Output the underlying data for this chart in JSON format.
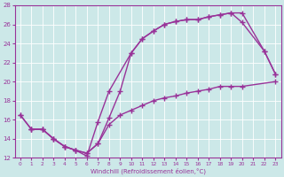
{
  "background_color": "#cce8e8",
  "line_color": "#993399",
  "marker": "+",
  "markersize": 4,
  "linewidth": 1.0,
  "xlim": [
    -0.5,
    23.5
  ],
  "ylim": [
    12,
    28
  ],
  "xticks": [
    0,
    1,
    2,
    3,
    4,
    5,
    6,
    7,
    8,
    9,
    10,
    11,
    12,
    13,
    14,
    15,
    16,
    17,
    18,
    19,
    20,
    21,
    22,
    23
  ],
  "yticks": [
    12,
    14,
    16,
    18,
    20,
    22,
    24,
    26,
    28
  ],
  "xlabel": "Windchill (Refroidissement éolien,°C)",
  "grid_color": "#ffffff",
  "series": [
    {
      "x": [
        0,
        1,
        2,
        3,
        4,
        5,
        6,
        7,
        8,
        10,
        11,
        12,
        13,
        14,
        15,
        16,
        17,
        18,
        19,
        20,
        22,
        23
      ],
      "y": [
        16.5,
        15.0,
        15.0,
        14.0,
        13.2,
        12.8,
        12.2,
        15.8,
        19.0,
        23.0,
        24.5,
        25.3,
        26.0,
        26.3,
        26.5,
        26.5,
        26.8,
        27.0,
        27.2,
        27.2,
        23.2,
        20.8
      ]
    },
    {
      "x": [
        0,
        1,
        2,
        3,
        4,
        5,
        6,
        7,
        8,
        9,
        10,
        11,
        12,
        13,
        14,
        15,
        16,
        17,
        18,
        19,
        20,
        22,
        23
      ],
      "y": [
        16.5,
        15.0,
        15.0,
        14.0,
        13.2,
        12.8,
        12.5,
        13.5,
        16.2,
        19.0,
        23.0,
        24.5,
        25.3,
        26.0,
        26.3,
        26.5,
        26.5,
        26.8,
        27.0,
        27.2,
        26.2,
        23.2,
        20.8
      ]
    },
    {
      "x": [
        1,
        2,
        3,
        4,
        5,
        6,
        7,
        8,
        9,
        10,
        11,
        12,
        13,
        14,
        15,
        16,
        17,
        18,
        19,
        20,
        23
      ],
      "y": [
        15.0,
        15.0,
        14.0,
        13.2,
        12.8,
        12.5,
        13.5,
        15.5,
        16.5,
        17.0,
        17.5,
        18.0,
        18.3,
        18.5,
        18.8,
        19.0,
        19.2,
        19.5,
        19.5,
        19.5,
        20.0
      ]
    }
  ]
}
